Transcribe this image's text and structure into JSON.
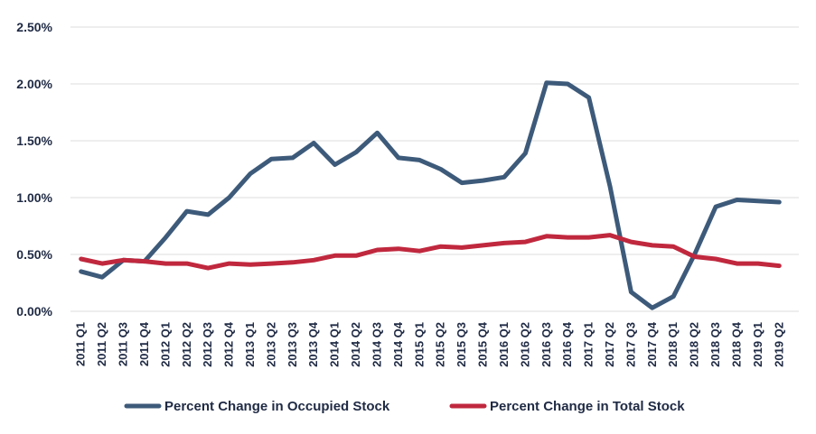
{
  "chart_data": {
    "type": "line",
    "title": "",
    "xlabel": "",
    "ylabel": "",
    "ylim": [
      0,
      0.025
    ],
    "yticks": [
      "0.00%",
      "0.50%",
      "1.00%",
      "1.50%",
      "2.00%",
      "2.50%"
    ],
    "grid": true,
    "legend_position": "bottom",
    "categories": [
      "2011 Q1",
      "2011 Q2",
      "2011 Q3",
      "2011 Q4",
      "2012 Q1",
      "2012 Q2",
      "2012 Q3",
      "2012 Q4",
      "2013 Q1",
      "2013 Q2",
      "2013 Q3",
      "2013 Q4",
      "2014 Q1",
      "2014 Q2",
      "2014 Q3",
      "2014 Q4",
      "2015 Q1",
      "2015 Q2",
      "2015 Q3",
      "2015 Q4",
      "2016 Q1",
      "2016 Q2",
      "2016 Q3",
      "2016 Q4",
      "2017 Q1",
      "2017 Q2",
      "2017 Q3",
      "2017 Q4",
      "2018 Q1",
      "2018 Q2",
      "2018 Q3",
      "2018 Q4",
      "2019 Q1",
      "2019 Q2"
    ],
    "series": [
      {
        "name": "Percent Change in Occupied Stock",
        "color": "#3d5a7a",
        "values": [
          0.0035,
          0.003,
          0.0045,
          0.0044,
          0.0065,
          0.0088,
          0.0085,
          0.01,
          0.0121,
          0.0134,
          0.0135,
          0.0148,
          0.0129,
          0.014,
          0.0157,
          0.0135,
          0.0133,
          0.0125,
          0.0113,
          0.0115,
          0.0118,
          0.0139,
          0.0201,
          0.02,
          0.0188,
          0.011,
          0.0017,
          0.0003,
          0.0013,
          0.005,
          0.0092,
          0.0098,
          0.0097,
          0.0096
        ]
      },
      {
        "name": "Percent Change in Total Stock",
        "color": "#c0283e",
        "values": [
          0.0046,
          0.0042,
          0.0045,
          0.0044,
          0.0042,
          0.0042,
          0.0038,
          0.0042,
          0.0041,
          0.0042,
          0.0043,
          0.0045,
          0.0049,
          0.0049,
          0.0054,
          0.0055,
          0.0053,
          0.0057,
          0.0056,
          0.0058,
          0.006,
          0.0061,
          0.0066,
          0.0065,
          0.0065,
          0.0067,
          0.0061,
          0.0058,
          0.0057,
          0.0048,
          0.0046,
          0.0042,
          0.0042,
          0.004
        ]
      }
    ]
  }
}
